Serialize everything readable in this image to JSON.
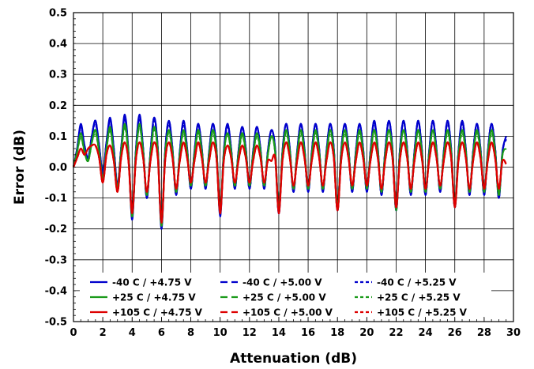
{
  "chart_data": {
    "type": "line",
    "title": "",
    "xlabel": "Attenuation (dB)",
    "ylabel": "Error (dB)",
    "xlim": [
      0,
      30
    ],
    "ylim": [
      -0.5,
      0.5
    ],
    "grid": true,
    "legend_position": "bottom",
    "x_ticks": [
      "0",
      "2",
      "4",
      "6",
      "8",
      "10",
      "12",
      "14",
      "16",
      "18",
      "20",
      "22",
      "24",
      "26",
      "28",
      "30"
    ],
    "y_ticks": [
      "0.5",
      "0.4",
      "0.3",
      "0.2",
      "0.1",
      "0.0",
      "-0.1",
      "-0.2",
      "-0.3",
      "-0.4",
      "-0.5"
    ],
    "step_x": 0.25,
    "series": [
      {
        "name": "-40 C / +4.75 V",
        "color": "#0000cc",
        "dash": "solid",
        "values": [
          0,
          0.06,
          0.14,
          0.07,
          0.03,
          0.1,
          0.15,
          0.07,
          -0.02,
          0.08,
          0.16,
          0.06,
          -0.06,
          0.06,
          0.17,
          0.05,
          -0.17,
          0.05,
          0.17,
          0.06,
          -0.1,
          0.05,
          0.16,
          0.06,
          -0.2,
          0.05,
          0.15,
          0.06,
          -0.09,
          0.05,
          0.15,
          0.06,
          -0.07,
          0.05,
          0.14,
          0.06,
          -0.07,
          0.05,
          0.14,
          0.06,
          -0.16,
          0.05,
          0.14,
          0.06,
          -0.07,
          0.05,
          0.13,
          0.06,
          -0.07,
          0.05,
          0.13,
          0.06,
          -0.07,
          0.05,
          0.12,
          0.06,
          -0.15,
          0.05,
          0.14,
          0.06,
          -0.08,
          0.05,
          0.14,
          0.06,
          -0.08,
          0.05,
          0.14,
          0.06,
          -0.08,
          0.05,
          0.14,
          0.06,
          -0.14,
          0.05,
          0.14,
          0.06,
          -0.08,
          0.05,
          0.14,
          0.06,
          -0.08,
          0.05,
          0.15,
          0.06,
          -0.09,
          0.05,
          0.15,
          0.06,
          -0.14,
          0.05,
          0.15,
          0.06,
          -0.09,
          0.05,
          0.15,
          0.06,
          -0.09,
          0.05,
          0.15,
          0.06,
          -0.08,
          0.05,
          0.15,
          0.06,
          -0.13,
          0.05,
          0.15,
          0.06,
          -0.09,
          0.05,
          0.14,
          0.06,
          -0.09,
          0.05,
          0.14,
          0.06,
          -0.1,
          0.05,
          0.1
        ]
      },
      {
        "name": "-40 C / +5.00 V",
        "color": "#0000cc",
        "dash": "longdash",
        "values": [
          0,
          0.06,
          0.13,
          0.07,
          0.03,
          0.1,
          0.15,
          0.07,
          -0.02,
          0.08,
          0.15,
          0.06,
          -0.06,
          0.06,
          0.16,
          0.05,
          -0.16,
          0.05,
          0.16,
          0.06,
          -0.1,
          0.05,
          0.16,
          0.06,
          -0.19,
          0.05,
          0.15,
          0.06,
          -0.09,
          0.05,
          0.15,
          0.06,
          -0.07,
          0.05,
          0.14,
          0.06,
          -0.07,
          0.05,
          0.14,
          0.06,
          -0.15,
          0.05,
          0.14,
          0.06,
          -0.07,
          0.05,
          0.13,
          0.06,
          -0.07,
          0.05,
          0.13,
          0.06,
          -0.07,
          0.05,
          0.12,
          0.06,
          -0.15,
          0.05,
          0.14,
          0.06,
          -0.08,
          0.05,
          0.14,
          0.06,
          -0.08,
          0.05,
          0.14,
          0.06,
          -0.08,
          0.05,
          0.14,
          0.06,
          -0.14,
          0.05,
          0.14,
          0.06,
          -0.08,
          0.05,
          0.14,
          0.06,
          -0.08,
          0.05,
          0.15,
          0.06,
          -0.09,
          0.05,
          0.15,
          0.06,
          -0.14,
          0.05,
          0.15,
          0.06,
          -0.09,
          0.05,
          0.15,
          0.06,
          -0.09,
          0.05,
          0.15,
          0.06,
          -0.08,
          0.05,
          0.15,
          0.06,
          -0.13,
          0.05,
          0.15,
          0.06,
          -0.09,
          0.05,
          0.14,
          0.06,
          -0.09,
          0.05,
          0.14,
          0.06,
          -0.1,
          0.05,
          0.09
        ]
      },
      {
        "name": "-40 C / +5.25 V",
        "color": "#0000cc",
        "dash": "shortdash",
        "values": [
          0,
          0.06,
          0.13,
          0.07,
          0.03,
          0.1,
          0.14,
          0.07,
          -0.02,
          0.08,
          0.15,
          0.06,
          -0.06,
          0.06,
          0.16,
          0.05,
          -0.16,
          0.05,
          0.16,
          0.06,
          -0.1,
          0.05,
          0.15,
          0.06,
          -0.19,
          0.05,
          0.14,
          0.06,
          -0.09,
          0.05,
          0.14,
          0.06,
          -0.07,
          0.05,
          0.14,
          0.06,
          -0.07,
          0.05,
          0.14,
          0.06,
          -0.15,
          0.05,
          0.13,
          0.06,
          -0.07,
          0.05,
          0.13,
          0.06,
          -0.07,
          0.05,
          0.13,
          0.06,
          -0.07,
          0.05,
          0.12,
          0.06,
          -0.15,
          0.05,
          0.14,
          0.06,
          -0.08,
          0.05,
          0.14,
          0.06,
          -0.08,
          0.05,
          0.14,
          0.06,
          -0.08,
          0.05,
          0.14,
          0.06,
          -0.14,
          0.05,
          0.14,
          0.06,
          -0.08,
          0.05,
          0.14,
          0.06,
          -0.08,
          0.05,
          0.14,
          0.06,
          -0.09,
          0.05,
          0.15,
          0.06,
          -0.14,
          0.05,
          0.15,
          0.06,
          -0.09,
          0.05,
          0.15,
          0.06,
          -0.09,
          0.05,
          0.15,
          0.06,
          -0.08,
          0.05,
          0.14,
          0.06,
          -0.13,
          0.05,
          0.14,
          0.06,
          -0.09,
          0.05,
          0.14,
          0.06,
          -0.09,
          0.05,
          0.14,
          0.06,
          -0.1,
          0.05,
          0.09
        ]
      },
      {
        "name": "+25 C / +4.75 V",
        "color": "#1a9a1a",
        "dash": "solid",
        "values": [
          0,
          0.05,
          0.11,
          0.05,
          0.02,
          0.08,
          0.12,
          0.05,
          -0.04,
          0.06,
          0.13,
          0.04,
          -0.07,
          0.05,
          0.14,
          0.04,
          -0.16,
          0.04,
          0.14,
          0.05,
          -0.09,
          0.04,
          0.13,
          0.05,
          -0.19,
          0.04,
          0.12,
          0.05,
          -0.08,
          0.04,
          0.12,
          0.05,
          -0.06,
          0.04,
          0.12,
          0.05,
          -0.06,
          0.04,
          0.12,
          0.05,
          -0.15,
          0.04,
          0.11,
          0.05,
          -0.06,
          0.04,
          0.11,
          0.05,
          -0.06,
          0.04,
          0.11,
          0.05,
          -0.06,
          0.04,
          0.1,
          0.05,
          -0.14,
          0.04,
          0.12,
          0.05,
          -0.07,
          0.04,
          0.12,
          0.05,
          -0.07,
          0.04,
          0.12,
          0.05,
          -0.07,
          0.04,
          0.12,
          0.05,
          -0.14,
          0.04,
          0.12,
          0.05,
          -0.07,
          0.04,
          0.12,
          0.05,
          -0.07,
          0.04,
          0.12,
          0.05,
          -0.08,
          0.04,
          0.12,
          0.05,
          -0.14,
          0.04,
          0.12,
          0.05,
          -0.08,
          0.04,
          0.12,
          0.05,
          -0.08,
          0.04,
          0.12,
          0.05,
          -0.07,
          0.04,
          0.12,
          0.05,
          -0.13,
          0.04,
          0.12,
          0.05,
          -0.08,
          0.04,
          0.12,
          0.05,
          -0.08,
          0.04,
          0.12,
          0.05,
          -0.09,
          0.04,
          0.06
        ]
      },
      {
        "name": "+25 C / +5.00 V",
        "color": "#1a9a1a",
        "dash": "longdash",
        "values": [
          0,
          0.05,
          0.1,
          0.05,
          0.02,
          0.08,
          0.12,
          0.05,
          -0.04,
          0.06,
          0.12,
          0.04,
          -0.07,
          0.05,
          0.13,
          0.04,
          -0.15,
          0.04,
          0.13,
          0.05,
          -0.09,
          0.04,
          0.13,
          0.05,
          -0.18,
          0.04,
          0.12,
          0.05,
          -0.08,
          0.04,
          0.12,
          0.05,
          -0.06,
          0.04,
          0.12,
          0.05,
          -0.06,
          0.04,
          0.12,
          0.05,
          -0.14,
          0.04,
          0.11,
          0.05,
          -0.06,
          0.04,
          0.11,
          0.05,
          -0.06,
          0.04,
          0.11,
          0.05,
          -0.06,
          0.04,
          0.1,
          0.05,
          -0.14,
          0.04,
          0.12,
          0.05,
          -0.07,
          0.04,
          0.12,
          0.05,
          -0.07,
          0.04,
          0.12,
          0.05,
          -0.07,
          0.04,
          0.12,
          0.05,
          -0.13,
          0.04,
          0.12,
          0.05,
          -0.07,
          0.04,
          0.12,
          0.05,
          -0.07,
          0.04,
          0.12,
          0.05,
          -0.08,
          0.04,
          0.12,
          0.05,
          -0.13,
          0.04,
          0.12,
          0.05,
          -0.08,
          0.04,
          0.12,
          0.05,
          -0.08,
          0.04,
          0.12,
          0.05,
          -0.07,
          0.04,
          0.12,
          0.05,
          -0.12,
          0.04,
          0.12,
          0.05,
          -0.08,
          0.04,
          0.12,
          0.05,
          -0.08,
          0.04,
          0.12,
          0.05,
          -0.09,
          0.04,
          0.06
        ]
      },
      {
        "name": "+25 C / +5.25 V",
        "color": "#1a9a1a",
        "dash": "shortdash",
        "values": [
          0,
          0.05,
          0.1,
          0.05,
          0.02,
          0.08,
          0.11,
          0.05,
          -0.04,
          0.06,
          0.12,
          0.04,
          -0.07,
          0.05,
          0.13,
          0.04,
          -0.15,
          0.04,
          0.13,
          0.05,
          -0.09,
          0.04,
          0.12,
          0.05,
          -0.18,
          0.04,
          0.11,
          0.05,
          -0.08,
          0.04,
          0.11,
          0.05,
          -0.06,
          0.04,
          0.11,
          0.05,
          -0.06,
          0.04,
          0.11,
          0.05,
          -0.14,
          0.04,
          0.11,
          0.05,
          -0.06,
          0.04,
          0.1,
          0.05,
          -0.06,
          0.04,
          0.1,
          0.05,
          -0.06,
          0.04,
          0.1,
          0.05,
          -0.14,
          0.04,
          0.11,
          0.05,
          -0.07,
          0.04,
          0.11,
          0.05,
          -0.07,
          0.04,
          0.11,
          0.05,
          -0.07,
          0.04,
          0.11,
          0.05,
          -0.13,
          0.04,
          0.11,
          0.05,
          -0.07,
          0.04,
          0.11,
          0.05,
          -0.07,
          0.04,
          0.12,
          0.05,
          -0.08,
          0.04,
          0.12,
          0.05,
          -0.13,
          0.04,
          0.12,
          0.05,
          -0.08,
          0.04,
          0.12,
          0.05,
          -0.08,
          0.04,
          0.12,
          0.05,
          -0.07,
          0.04,
          0.11,
          0.05,
          -0.12,
          0.04,
          0.11,
          0.05,
          -0.08,
          0.04,
          0.11,
          0.05,
          -0.08,
          0.04,
          0.11,
          0.05,
          -0.09,
          0.04,
          0.06
        ]
      },
      {
        "name": "+105 C / +4.75 V",
        "color": "#dd0000",
        "dash": "solid",
        "values": [
          0,
          0.03,
          0.06,
          0.04,
          0.06,
          0.07,
          0.07,
          0.03,
          -0.05,
          0.04,
          0.07,
          0.02,
          -0.08,
          0.03,
          0.08,
          0.02,
          -0.15,
          0.02,
          0.08,
          0.03,
          -0.08,
          0.02,
          0.08,
          0.03,
          -0.18,
          0.02,
          0.08,
          0.03,
          -0.07,
          0.02,
          0.08,
          0.03,
          -0.05,
          0.02,
          0.08,
          0.03,
          -0.05,
          0.02,
          0.08,
          0.03,
          -0.15,
          0.02,
          0.07,
          0.03,
          -0.05,
          0.02,
          0.07,
          0.03,
          -0.05,
          0.02,
          0.07,
          0.03,
          -0.05,
          0.02,
          0.02,
          0.03,
          -0.15,
          0.02,
          0.08,
          0.03,
          -0.06,
          0.02,
          0.08,
          0.03,
          -0.06,
          0.02,
          0.08,
          0.03,
          -0.06,
          0.02,
          0.08,
          0.03,
          -0.14,
          0.02,
          0.08,
          0.03,
          -0.06,
          0.02,
          0.08,
          0.03,
          -0.06,
          0.02,
          0.08,
          0.03,
          -0.07,
          0.02,
          0.08,
          0.03,
          -0.13,
          0.02,
          0.08,
          0.03,
          -0.07,
          0.02,
          0.08,
          0.03,
          -0.07,
          0.02,
          0.08,
          0.03,
          -0.06,
          0.02,
          0.08,
          0.03,
          -0.13,
          0.02,
          0.08,
          0.03,
          -0.07,
          0.02,
          0.08,
          0.03,
          -0.07,
          0.02,
          0.08,
          0.03,
          -0.07,
          0.02,
          0.01
        ]
      },
      {
        "name": "+105 C / +5.00 V",
        "color": "#dd0000",
        "dash": "longdash",
        "values": [
          0,
          0.03,
          0.06,
          0.04,
          0.06,
          0.07,
          0.07,
          0.03,
          -0.05,
          0.04,
          0.07,
          0.02,
          -0.08,
          0.03,
          0.08,
          0.02,
          -0.14,
          0.02,
          0.08,
          0.03,
          -0.08,
          0.02,
          0.08,
          0.03,
          -0.17,
          0.02,
          0.08,
          0.03,
          -0.07,
          0.02,
          0.08,
          0.03,
          -0.05,
          0.02,
          0.08,
          0.03,
          -0.05,
          0.02,
          0.08,
          0.03,
          -0.14,
          0.02,
          0.07,
          0.03,
          -0.05,
          0.02,
          0.07,
          0.03,
          -0.05,
          0.02,
          0.07,
          0.03,
          -0.05,
          0.02,
          0.02,
          0.03,
          -0.14,
          0.02,
          0.08,
          0.03,
          -0.06,
          0.02,
          0.08,
          0.03,
          -0.06,
          0.02,
          0.08,
          0.03,
          -0.06,
          0.02,
          0.08,
          0.03,
          -0.14,
          0.02,
          0.08,
          0.03,
          -0.06,
          0.02,
          0.08,
          0.03,
          -0.06,
          0.02,
          0.08,
          0.03,
          -0.07,
          0.02,
          0.08,
          0.03,
          -0.13,
          0.02,
          0.08,
          0.03,
          -0.07,
          0.02,
          0.08,
          0.03,
          -0.07,
          0.02,
          0.08,
          0.03,
          -0.06,
          0.02,
          0.08,
          0.03,
          -0.12,
          0.02,
          0.08,
          0.03,
          -0.07,
          0.02,
          0.08,
          0.03,
          -0.07,
          0.02,
          0.08,
          0.03,
          -0.07,
          0.02,
          0.01
        ]
      },
      {
        "name": "+105 C / +5.25 V",
        "color": "#dd0000",
        "dash": "shortdash",
        "values": [
          0,
          0.03,
          0.06,
          0.04,
          0.06,
          0.07,
          0.07,
          0.03,
          -0.05,
          0.04,
          0.07,
          0.02,
          -0.08,
          0.03,
          0.08,
          0.02,
          -0.14,
          0.02,
          0.08,
          0.03,
          -0.08,
          0.02,
          0.08,
          0.03,
          -0.17,
          0.02,
          0.08,
          0.03,
          -0.07,
          0.02,
          0.08,
          0.03,
          -0.05,
          0.02,
          0.08,
          0.03,
          -0.05,
          0.02,
          0.08,
          0.03,
          -0.14,
          0.02,
          0.07,
          0.03,
          -0.05,
          0.02,
          0.07,
          0.03,
          -0.05,
          0.02,
          0.07,
          0.03,
          -0.05,
          0.02,
          0.02,
          0.03,
          -0.14,
          0.02,
          0.08,
          0.03,
          -0.06,
          0.02,
          0.08,
          0.03,
          -0.06,
          0.02,
          0.08,
          0.03,
          -0.06,
          0.02,
          0.08,
          0.03,
          -0.14,
          0.02,
          0.08,
          0.03,
          -0.06,
          0.02,
          0.08,
          0.03,
          -0.06,
          0.02,
          0.08,
          0.03,
          -0.07,
          0.02,
          0.08,
          0.03,
          -0.13,
          0.02,
          0.08,
          0.03,
          -0.07,
          0.02,
          0.08,
          0.03,
          -0.07,
          0.02,
          0.08,
          0.03,
          -0.06,
          0.02,
          0.08,
          0.03,
          -0.12,
          0.02,
          0.08,
          0.03,
          -0.07,
          0.02,
          0.08,
          0.03,
          -0.07,
          0.02,
          0.08,
          0.03,
          -0.07,
          0.02,
          0.01
        ]
      }
    ]
  }
}
